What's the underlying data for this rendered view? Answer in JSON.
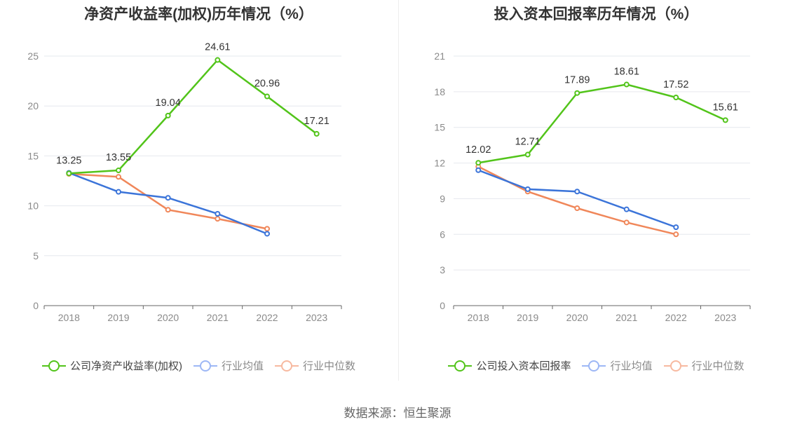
{
  "source_text": "数据来源：恒生聚源",
  "colors": {
    "company": "#52c41a",
    "avg": "#3b74d9",
    "median": "#f0875a",
    "avg_legend": "#9db7f5",
    "median_legend": "#f7b9a0"
  },
  "chart_data": [
    {
      "type": "line",
      "title": "净资产收益率(加权)历年情况（%）",
      "x": [
        "2018",
        "2019",
        "2020",
        "2021",
        "2022",
        "2023"
      ],
      "ylim": [
        0,
        25
      ],
      "yticks": [
        0,
        5,
        10,
        15,
        20,
        25
      ],
      "grid": true,
      "legend": "bottom",
      "series": [
        {
          "name": "公司净资产收益率(加权)",
          "role": "company",
          "values": [
            13.25,
            13.55,
            19.04,
            24.61,
            20.96,
            17.21
          ],
          "labels": [
            "13.25",
            "13.55",
            "19.04",
            "24.61",
            "20.96",
            "17.21"
          ]
        },
        {
          "name": "行业均值",
          "role": "avg",
          "values": [
            13.3,
            11.4,
            10.8,
            9.2,
            7.2,
            null
          ]
        },
        {
          "name": "行业中位数",
          "role": "median",
          "values": [
            13.2,
            12.9,
            9.6,
            8.7,
            7.7,
            null
          ]
        }
      ]
    },
    {
      "type": "line",
      "title": "投入资本回报率历年情况（%）",
      "x": [
        "2018",
        "2019",
        "2020",
        "2021",
        "2022",
        "2023"
      ],
      "ylim": [
        0,
        21
      ],
      "yticks": [
        0,
        3,
        6,
        9,
        12,
        15,
        18,
        21
      ],
      "grid": true,
      "legend": "bottom",
      "series": [
        {
          "name": "公司投入资本回报率",
          "role": "company",
          "values": [
            12.02,
            12.71,
            17.89,
            18.61,
            17.52,
            15.61
          ],
          "labels": [
            "12.02",
            "12.71",
            "17.89",
            "18.61",
            "17.52",
            "15.61"
          ]
        },
        {
          "name": "行业均值",
          "role": "avg",
          "values": [
            11.4,
            9.8,
            9.6,
            8.1,
            6.6,
            null
          ]
        },
        {
          "name": "行业中位数",
          "role": "median",
          "values": [
            11.7,
            9.6,
            8.2,
            7.0,
            6.0,
            null
          ]
        }
      ]
    }
  ]
}
